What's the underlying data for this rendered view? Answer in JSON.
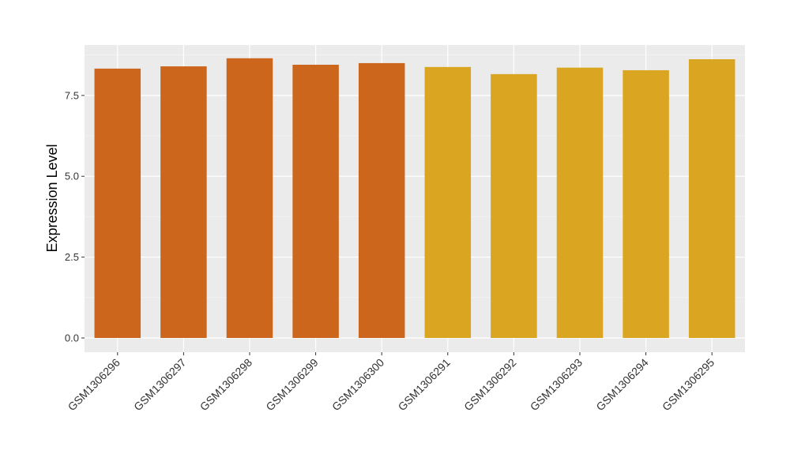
{
  "chart_data": {
    "type": "bar",
    "y_label": "Expression Level",
    "categories": [
      "GSM1306296",
      "GSM1306297",
      "GSM1306298",
      "GSM1306299",
      "GSM1306300",
      "GSM1306291",
      "GSM1306292",
      "GSM1306293",
      "GSM1306294",
      "GSM1306295"
    ],
    "values": [
      8.33,
      8.4,
      8.65,
      8.45,
      8.5,
      8.38,
      8.16,
      8.36,
      8.28,
      8.62
    ],
    "colors": [
      "#cd661d",
      "#cd661d",
      "#cd661d",
      "#cd661d",
      "#cd661d",
      "#daa520",
      "#daa520",
      "#daa520",
      "#daa520",
      "#daa520"
    ],
    "ylim": [
      -0.44,
      9.06
    ],
    "yticks": [
      {
        "value": 0,
        "label": "0.0"
      },
      2.5,
      {
        "value": 5,
        "label": "5.0"
      },
      7.5
    ],
    "grid": true
  }
}
